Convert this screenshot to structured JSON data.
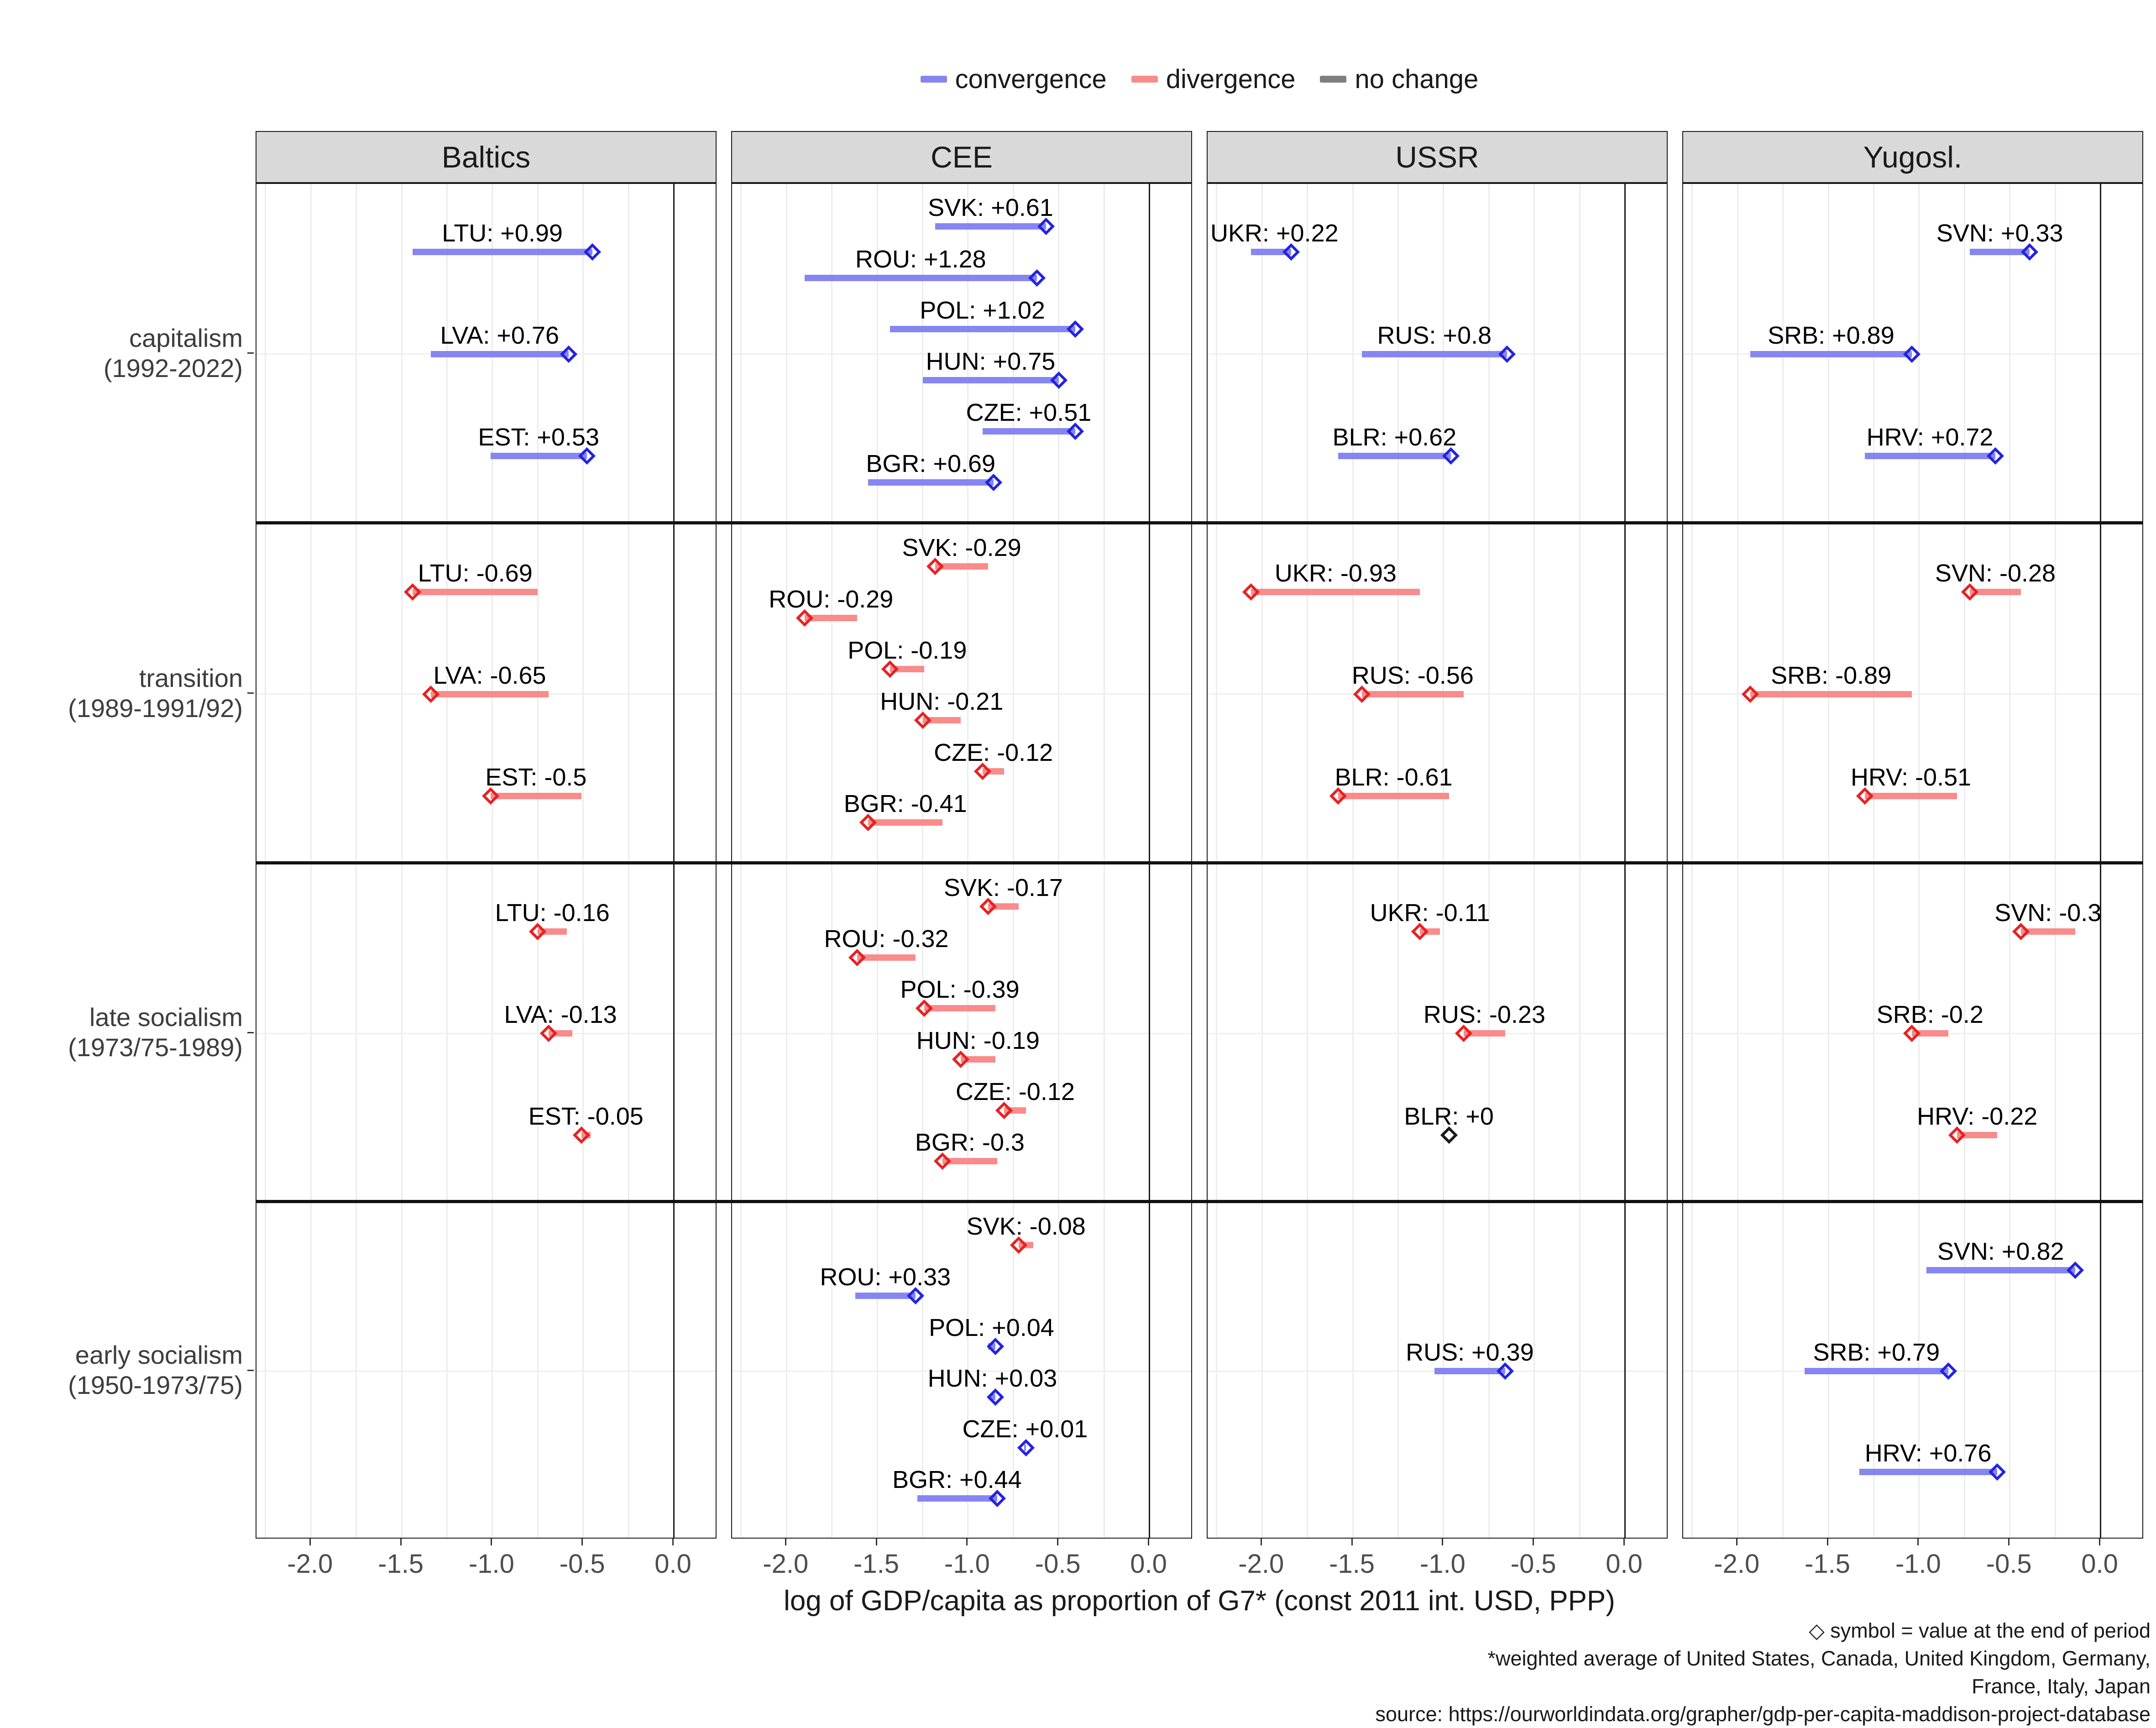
{
  "legend": {
    "items": [
      {
        "label": "convergence",
        "color": "#8585F2"
      },
      {
        "label": "divergence",
        "color": "#F98B8B"
      },
      {
        "label": "no change",
        "color": "#7F7F7F"
      }
    ]
  },
  "chart_data": {
    "type": "dumbbell-segment",
    "x_axis": {
      "label": "log of GDP/capita as proportion of G7* (const 2011 int. USD, PPP)",
      "ticks": [
        "-2.0",
        "-1.5",
        "-1.0",
        "-0.5",
        "0.0"
      ],
      "tick_values": [
        -2.0,
        -1.5,
        -1.0,
        -0.5,
        0.0
      ],
      "range": [
        -2.3,
        0.24
      ],
      "minor_grid_values": [
        -2.25,
        -2.0,
        -1.75,
        -1.5,
        -1.25,
        -1.0,
        -0.75,
        -0.5,
        -0.25
      ],
      "zero_line": 0.0
    },
    "colors": {
      "convergence": {
        "segment": "#8686F2",
        "marker": "#2323DE"
      },
      "divergence": {
        "segment": "#F98B8B",
        "marker": "#E62222"
      },
      "no_change": {
        "segment": "#808080",
        "marker": "#1A1A1A"
      }
    },
    "columns": [
      "Baltics",
      "CEE",
      "USSR",
      "Yugosl."
    ],
    "rows": [
      {
        "line1": "capitalism",
        "line2": "(1992-2022)"
      },
      {
        "line1": "transition",
        "line2": "(1989-1991/92)"
      },
      {
        "line1": "late socialism",
        "line2": "(1973/75-1989)"
      },
      {
        "line1": "early socialism",
        "line2": "(1950-1973/75)"
      }
    ],
    "panels": [
      {
        "col": 0,
        "row": 0,
        "slots": 3,
        "entries": [
          {
            "label": "LTU: +0.99",
            "slot": 0,
            "start": -1.44,
            "end": -0.45,
            "dir": "convergence"
          },
          {
            "label": "LVA: +0.76",
            "slot": 1,
            "start": -1.34,
            "end": -0.58,
            "dir": "convergence"
          },
          {
            "label": "EST: +0.53",
            "slot": 2,
            "start": -1.01,
            "end": -0.48,
            "dir": "convergence"
          }
        ]
      },
      {
        "col": 1,
        "row": 0,
        "slots": 6,
        "entries": [
          {
            "label": "SVK: +0.61",
            "slot": 0,
            "start": -1.18,
            "end": -0.57,
            "dir": "convergence"
          },
          {
            "label": "ROU: +1.28",
            "slot": 1,
            "start": -1.9,
            "end": -0.62,
            "dir": "convergence"
          },
          {
            "label": "POL: +1.02",
            "slot": 2,
            "start": -1.43,
            "end": -0.41,
            "dir": "convergence"
          },
          {
            "label": "HUN: +0.75",
            "slot": 3,
            "start": -1.25,
            "end": -0.5,
            "dir": "convergence"
          },
          {
            "label": "CZE: +0.51",
            "slot": 4,
            "start": -0.92,
            "end": -0.41,
            "dir": "convergence"
          },
          {
            "label": "BGR: +0.69",
            "slot": 5,
            "start": -1.55,
            "end": -0.86,
            "dir": "convergence"
          }
        ]
      },
      {
        "col": 2,
        "row": 0,
        "slots": 3,
        "entries": [
          {
            "label": "UKR: +0.22",
            "slot": 0,
            "start": -2.06,
            "end": -1.84,
            "dir": "convergence"
          },
          {
            "label": "RUS: +0.8",
            "slot": 1,
            "start": -1.45,
            "end": -0.65,
            "dir": "convergence"
          },
          {
            "label": "BLR: +0.62",
            "slot": 2,
            "start": -1.58,
            "end": -0.96,
            "dir": "convergence"
          }
        ]
      },
      {
        "col": 3,
        "row": 0,
        "slots": 3,
        "entries": [
          {
            "label": "SVN: +0.33",
            "slot": 0,
            "start": -0.72,
            "end": -0.39,
            "dir": "convergence"
          },
          {
            "label": "SRB: +0.89",
            "slot": 1,
            "start": -1.93,
            "end": -1.04,
            "dir": "convergence"
          },
          {
            "label": "HRV: +0.72",
            "slot": 2,
            "start": -1.3,
            "end": -0.58,
            "dir": "convergence"
          }
        ]
      },
      {
        "col": 0,
        "row": 1,
        "slots": 3,
        "entries": [
          {
            "label": "LTU: -0.69",
            "slot": 0,
            "start": -0.75,
            "end": -1.44,
            "dir": "divergence"
          },
          {
            "label": "LVA: -0.65",
            "slot": 1,
            "start": -0.69,
            "end": -1.34,
            "dir": "divergence"
          },
          {
            "label": "EST: -0.5",
            "slot": 2,
            "start": -0.51,
            "end": -1.01,
            "dir": "divergence"
          }
        ]
      },
      {
        "col": 1,
        "row": 1,
        "slots": 6,
        "entries": [
          {
            "label": "SVK: -0.29",
            "slot": 0,
            "start": -0.89,
            "end": -1.18,
            "dir": "divergence"
          },
          {
            "label": "ROU: -0.29",
            "slot": 1,
            "start": -1.61,
            "end": -1.9,
            "dir": "divergence"
          },
          {
            "label": "POL: -0.19",
            "slot": 2,
            "start": -1.24,
            "end": -1.43,
            "dir": "divergence"
          },
          {
            "label": "HUN: -0.21",
            "slot": 3,
            "start": -1.04,
            "end": -1.25,
            "dir": "divergence"
          },
          {
            "label": "CZE: -0.12",
            "slot": 4,
            "start": -0.8,
            "end": -0.92,
            "dir": "divergence"
          },
          {
            "label": "BGR: -0.41",
            "slot": 5,
            "start": -1.14,
            "end": -1.55,
            "dir": "divergence"
          }
        ]
      },
      {
        "col": 2,
        "row": 1,
        "slots": 3,
        "entries": [
          {
            "label": "UKR: -0.93",
            "slot": 0,
            "start": -1.13,
            "end": -2.06,
            "dir": "divergence"
          },
          {
            "label": "RUS: -0.56",
            "slot": 1,
            "start": -0.89,
            "end": -1.45,
            "dir": "divergence"
          },
          {
            "label": "BLR: -0.61",
            "slot": 2,
            "start": -0.97,
            "end": -1.58,
            "dir": "divergence"
          }
        ]
      },
      {
        "col": 3,
        "row": 1,
        "slots": 3,
        "entries": [
          {
            "label": "SVN: -0.28",
            "slot": 0,
            "start": -0.44,
            "end": -0.72,
            "dir": "divergence"
          },
          {
            "label": "SRB: -0.89",
            "slot": 1,
            "start": -1.04,
            "end": -1.93,
            "dir": "divergence"
          },
          {
            "label": "HRV: -0.51",
            "slot": 2,
            "start": -0.79,
            "end": -1.3,
            "dir": "divergence"
          }
        ]
      },
      {
        "col": 0,
        "row": 2,
        "slots": 3,
        "entries": [
          {
            "label": "LTU: -0.16",
            "slot": 0,
            "start": -0.59,
            "end": -0.75,
            "dir": "divergence"
          },
          {
            "label": "LVA: -0.13",
            "slot": 1,
            "start": -0.56,
            "end": -0.69,
            "dir": "divergence"
          },
          {
            "label": "EST: -0.05",
            "slot": 2,
            "start": -0.46,
            "end": -0.51,
            "dir": "divergence"
          }
        ]
      },
      {
        "col": 1,
        "row": 2,
        "slots": 6,
        "entries": [
          {
            "label": "SVK: -0.17",
            "slot": 0,
            "start": -0.72,
            "end": -0.89,
            "dir": "divergence"
          },
          {
            "label": "ROU: -0.32",
            "slot": 1,
            "start": -1.29,
            "end": -1.61,
            "dir": "divergence"
          },
          {
            "label": "POL: -0.39",
            "slot": 2,
            "start": -0.85,
            "end": -1.24,
            "dir": "divergence"
          },
          {
            "label": "HUN: -0.19",
            "slot": 3,
            "start": -0.85,
            "end": -1.04,
            "dir": "divergence"
          },
          {
            "label": "CZE: -0.12",
            "slot": 4,
            "start": -0.68,
            "end": -0.8,
            "dir": "divergence"
          },
          {
            "label": "BGR: -0.3",
            "slot": 5,
            "start": -0.84,
            "end": -1.14,
            "dir": "divergence"
          }
        ]
      },
      {
        "col": 2,
        "row": 2,
        "slots": 3,
        "entries": [
          {
            "label": "UKR: -0.11",
            "slot": 0,
            "start": -1.02,
            "end": -1.13,
            "dir": "divergence"
          },
          {
            "label": "RUS: -0.23",
            "slot": 1,
            "start": -0.66,
            "end": -0.89,
            "dir": "divergence"
          },
          {
            "label": "BLR: +0",
            "slot": 2,
            "start": -0.97,
            "end": -0.97,
            "dir": "no_change"
          }
        ]
      },
      {
        "col": 3,
        "row": 2,
        "slots": 3,
        "entries": [
          {
            "label": "SVN: -0.3",
            "slot": 0,
            "start": -0.14,
            "end": -0.44,
            "dir": "divergence"
          },
          {
            "label": "SRB: -0.2",
            "slot": 1,
            "start": -0.84,
            "end": -1.04,
            "dir": "divergence"
          },
          {
            "label": "HRV: -0.22",
            "slot": 2,
            "start": -0.57,
            "end": -0.79,
            "dir": "divergence"
          }
        ]
      },
      {
        "col": 0,
        "row": 3,
        "slots": 3,
        "entries": []
      },
      {
        "col": 1,
        "row": 3,
        "slots": 6,
        "entries": [
          {
            "label": "SVK: -0.08",
            "slot": 0,
            "start": -0.64,
            "end": -0.72,
            "dir": "divergence"
          },
          {
            "label": "ROU: +0.33",
            "slot": 1,
            "start": -1.62,
            "end": -1.29,
            "dir": "convergence"
          },
          {
            "label": "POL: +0.04",
            "slot": 2,
            "start": -0.89,
            "end": -0.85,
            "dir": "convergence"
          },
          {
            "label": "HUN: +0.03",
            "slot": 3,
            "start": -0.88,
            "end": -0.85,
            "dir": "convergence"
          },
          {
            "label": "CZE: +0.01",
            "slot": 4,
            "start": -0.69,
            "end": -0.68,
            "dir": "convergence"
          },
          {
            "label": "BGR: +0.44",
            "slot": 5,
            "start": -1.28,
            "end": -0.84,
            "dir": "convergence"
          }
        ]
      },
      {
        "col": 2,
        "row": 3,
        "slots": 3,
        "entries": [
          {
            "label": "RUS: +0.39",
            "slot": 1,
            "start": -1.05,
            "end": -0.66,
            "dir": "convergence"
          }
        ]
      },
      {
        "col": 3,
        "row": 3,
        "slots": 3,
        "entries": [
          {
            "label": "SVN: +0.82",
            "slot": 0,
            "start": -0.96,
            "end": -0.14,
            "dir": "convergence"
          },
          {
            "label": "SRB: +0.79",
            "slot": 1,
            "start": -1.63,
            "end": -0.84,
            "dir": "convergence"
          },
          {
            "label": "HRV: +0.76",
            "slot": 2,
            "start": -1.33,
            "end": -0.57,
            "dir": "convergence"
          }
        ]
      }
    ]
  },
  "captions": {
    "line1": "◇ symbol = value at the end of period",
    "line2": "*weighted average of United States, Canada, United Kingdom, Germany,",
    "line3": "France, Italy, Japan",
    "line4": "source: https://ourworldindata.org/grapher/gdp-per-capita-maddison-project-database"
  }
}
